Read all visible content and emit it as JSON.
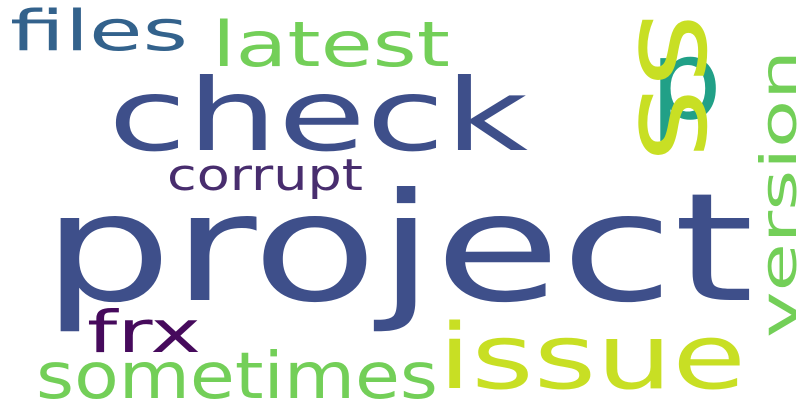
{
  "words": [
    {
      "text": "project",
      "color": "#3e4f8a"
    },
    {
      "text": "check",
      "color": "#3e4f8a"
    },
    {
      "text": "ss",
      "color": "#c8df24"
    },
    {
      "text": "p",
      "color": "#21a087"
    },
    {
      "text": "issue",
      "color": "#c8df24"
    },
    {
      "text": "sometimes",
      "color": "#73cf58"
    },
    {
      "text": "latest",
      "color": "#73cf58"
    },
    {
      "text": "version",
      "color": "#73cf58"
    },
    {
      "text": "files",
      "color": "#33628c"
    },
    {
      "text": "corrupt",
      "color": "#482d6e"
    },
    {
      "text": "frx",
      "color": "#460a5c"
    }
  ]
}
